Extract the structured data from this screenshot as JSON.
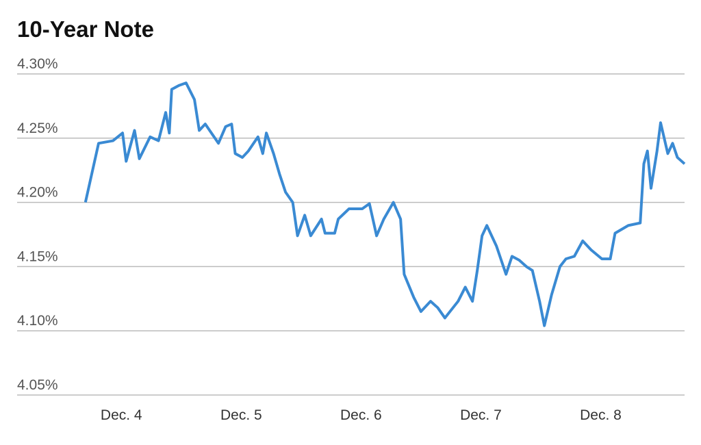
{
  "chart_data": {
    "type": "line",
    "title": "10-Year Note",
    "x": [
      3.7,
      3.81,
      3.93,
      4.01,
      4.04,
      4.11,
      4.15,
      4.24,
      4.31,
      4.37,
      4.4,
      4.42,
      4.48,
      4.54,
      4.61,
      4.65,
      4.7,
      4.81,
      4.87,
      4.92,
      4.95,
      5.01,
      5.06,
      5.14,
      5.18,
      5.21,
      5.27,
      5.32,
      5.37,
      5.43,
      5.47,
      5.53,
      5.58,
      5.67,
      5.7,
      5.78,
      5.81,
      5.9,
      6.01,
      6.07,
      6.13,
      6.19,
      6.27,
      6.33,
      6.36,
      6.44,
      6.5,
      6.58,
      6.64,
      6.7,
      6.81,
      6.87,
      6.93,
      6.97,
      7.01,
      7.05,
      7.13,
      7.21,
      7.26,
      7.32,
      7.38,
      7.43,
      7.49,
      7.53,
      7.59,
      7.66,
      7.71,
      7.78,
      7.85,
      7.92,
      8.01,
      8.08,
      8.12,
      8.23,
      8.33,
      8.36,
      8.39,
      8.42,
      8.47,
      8.5,
      8.56,
      8.6,
      8.64,
      8.7
    ],
    "series": [
      {
        "color": "#3a8ad3",
        "values": [
          4.2,
          4.246,
          4.248,
          4.254,
          4.232,
          4.256,
          4.234,
          4.251,
          4.248,
          4.27,
          4.254,
          4.288,
          4.291,
          4.293,
          4.28,
          4.256,
          4.261,
          4.246,
          4.259,
          4.261,
          4.238,
          4.235,
          4.24,
          4.251,
          4.238,
          4.254,
          4.238,
          4.222,
          4.208,
          4.2,
          4.174,
          4.19,
          4.174,
          4.187,
          4.176,
          4.176,
          4.187,
          4.195,
          4.195,
          4.199,
          4.174,
          4.187,
          4.2,
          4.187,
          4.144,
          4.126,
          4.115,
          4.123,
          4.118,
          4.11,
          4.123,
          4.134,
          4.123,
          4.147,
          4.174,
          4.182,
          4.166,
          4.144,
          4.158,
          4.155,
          4.15,
          4.147,
          4.123,
          4.104,
          4.128,
          4.15,
          4.156,
          4.158,
          4.17,
          4.163,
          4.156,
          4.156,
          4.176,
          4.182,
          4.184,
          4.23,
          4.24,
          4.211,
          4.24,
          4.262,
          4.238,
          4.246,
          4.235,
          4.23
        ]
      }
    ],
    "xlim": [
      3.13,
      8.7
    ],
    "xticks": [
      {
        "value": 4,
        "label": "Dec. 4"
      },
      {
        "value": 5,
        "label": "Dec. 5"
      },
      {
        "value": 6,
        "label": "Dec. 6"
      },
      {
        "value": 7,
        "label": "Dec. 7"
      },
      {
        "value": 8,
        "label": "Dec. 8"
      }
    ],
    "ylim": [
      4.05,
      4.3
    ],
    "yticks": [
      {
        "value": 4.05,
        "label": "4.05%"
      },
      {
        "value": 4.1,
        "label": "4.10%"
      },
      {
        "value": 4.15,
        "label": "4.15%"
      },
      {
        "value": 4.2,
        "label": "4.20%"
      },
      {
        "value": 4.25,
        "label": "4.25%"
      },
      {
        "value": 4.3,
        "label": "4.30%"
      }
    ],
    "grid": true
  }
}
